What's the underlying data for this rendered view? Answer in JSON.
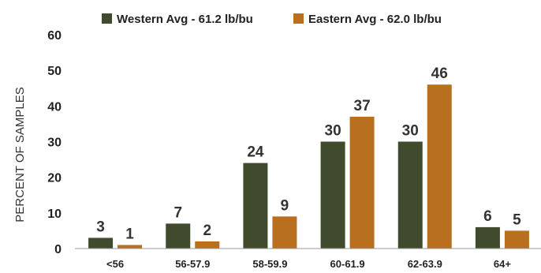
{
  "chart_data": {
    "type": "bar",
    "categories": [
      "<56",
      "56-57.9",
      "58-59.9",
      "60-61.9",
      "62-63.9",
      "64+"
    ],
    "series": [
      {
        "name": "Western Avg - 61.2 lb/bu",
        "values": [
          3,
          7,
          24,
          30,
          30,
          6
        ],
        "color": "#3f4b2c"
      },
      {
        "name": "Eastern Avg - 62.0 lb/bu",
        "values": [
          1,
          2,
          9,
          37,
          46,
          5
        ],
        "color": "#b8701e"
      }
    ],
    "title": "",
    "xlabel": "",
    "ylabel": "PERCENT OF SAMPLES",
    "ylim": [
      0,
      60
    ],
    "yticks": [
      0,
      10,
      20,
      30,
      40,
      50,
      60
    ],
    "grid": false,
    "legend_position": "top-center",
    "data_labels": true
  }
}
